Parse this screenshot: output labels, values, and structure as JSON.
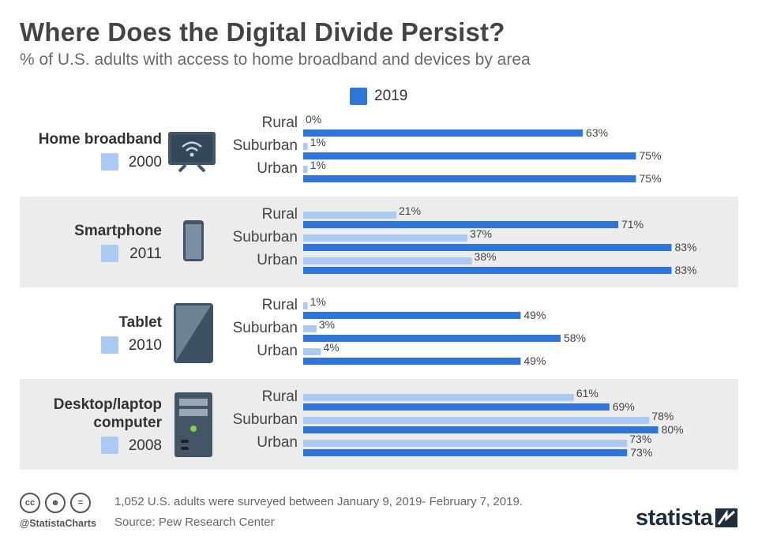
{
  "title": "Where Does the Digital Divide Persist?",
  "subtitle": "% of U.S. adults with access to home broadband and devices by area",
  "legend": {
    "label": "2019",
    "color": "#2e74d9"
  },
  "colors": {
    "current": "#2e74d9",
    "baseline": "#abc9f1",
    "band": "#ececec"
  },
  "chart_data": {
    "type": "bar",
    "title": "Where Does the Digital Divide Persist?",
    "subtitle": "% of U.S. adults with access to home broadband and devices by area",
    "unit": "%",
    "areas": [
      "Rural",
      "Suburban",
      "Urban"
    ],
    "groups": [
      {
        "name": "Home broadband",
        "name_lines": [
          "Home broadband"
        ],
        "icon": "tv-wifi-icon",
        "baseline_year": "2000",
        "baseline": [
          0,
          1,
          1
        ],
        "current": [
          63,
          75,
          75
        ]
      },
      {
        "name": "Smartphone",
        "name_lines": [
          "Smartphone"
        ],
        "icon": "smartphone-icon",
        "baseline_year": "2011",
        "baseline": [
          21,
          37,
          38
        ],
        "current": [
          71,
          83,
          83
        ]
      },
      {
        "name": "Tablet",
        "name_lines": [
          "Tablet"
        ],
        "icon": "tablet-icon",
        "baseline_year": "2010",
        "baseline": [
          1,
          3,
          4
        ],
        "current": [
          49,
          58,
          49
        ]
      },
      {
        "name": "Desktop/laptop computer",
        "name_lines": [
          "Desktop/laptop",
          "computer"
        ],
        "icon": "desktop-tower-icon",
        "baseline_year": "2008",
        "baseline": [
          61,
          78,
          73
        ],
        "current": [
          69,
          80,
          73
        ]
      }
    ],
    "current_year": "2019",
    "xlim": [
      0,
      100
    ],
    "grid": false,
    "legend_position": "top-center"
  },
  "footer": {
    "note": "1,052 U.S. adults were surveyed between January 9, 2019- February 7, 2019.",
    "source": "Source: Pew Research Center",
    "handle": "@StatistaCharts",
    "brand": "statista",
    "license_icons": [
      "cc-icon",
      "attribution-icon",
      "no-derivatives-icon"
    ]
  }
}
